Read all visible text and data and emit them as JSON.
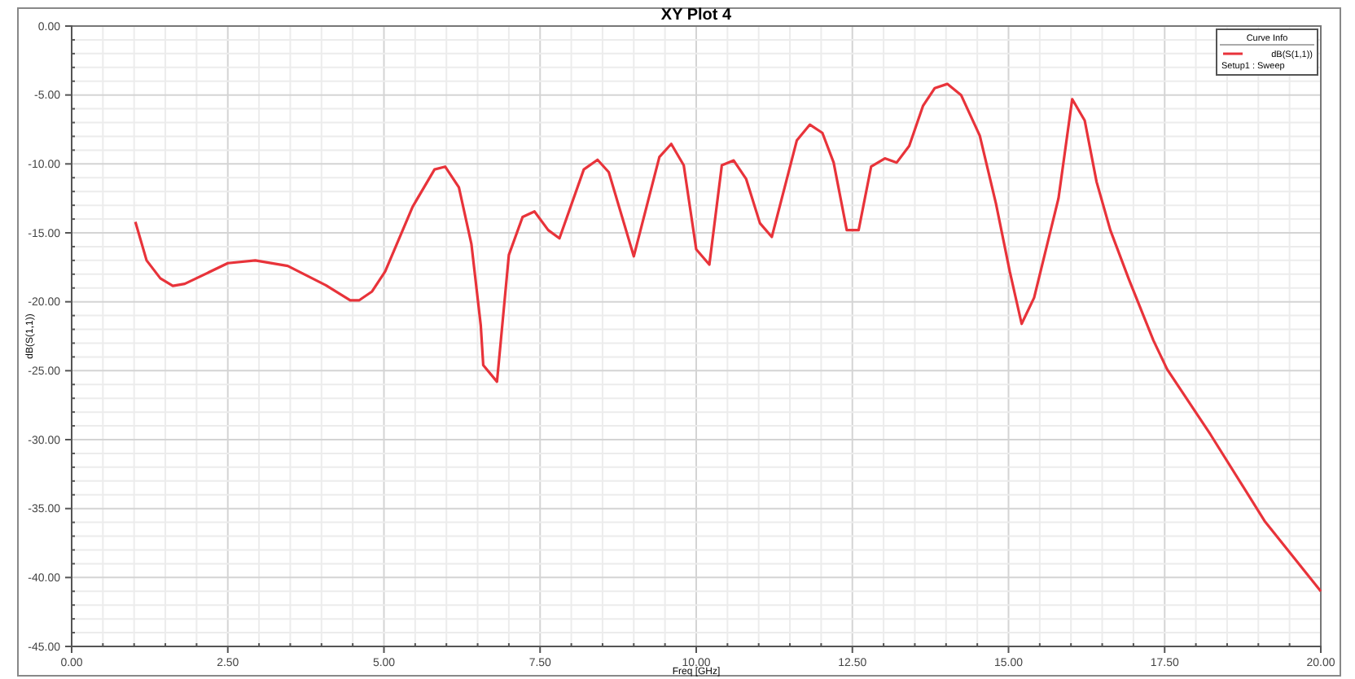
{
  "chart_data": {
    "type": "line",
    "title": "XY Plot 4",
    "xlabel": "Freq [GHz]",
    "ylabel": "dB(S(1,1))",
    "legend_title": "Curve Info",
    "xlim": [
      0,
      20
    ],
    "ylim": [
      -45,
      0
    ],
    "xticks": [
      {
        "value": 0,
        "label": "0.00"
      },
      {
        "value": 2.5,
        "label": "2.50"
      },
      {
        "value": 5,
        "label": "5.00"
      },
      {
        "value": 7.5,
        "label": "7.50"
      },
      {
        "value": 10,
        "label": "10.00"
      },
      {
        "value": 12.5,
        "label": "12.50"
      },
      {
        "value": 15,
        "label": "15.00"
      },
      {
        "value": 17.5,
        "label": "17.50"
      },
      {
        "value": 20,
        "label": "20.00"
      }
    ],
    "yticks": [
      {
        "value": -45,
        "label": "-45.00"
      },
      {
        "value": -40,
        "label": "-40.00"
      },
      {
        "value": -35,
        "label": "-35.00"
      },
      {
        "value": -30,
        "label": "-30.00"
      },
      {
        "value": -25,
        "label": "-25.00"
      },
      {
        "value": -20,
        "label": "-20.00"
      },
      {
        "value": -15,
        "label": "-15.00"
      },
      {
        "value": -10,
        "label": "-10.00"
      },
      {
        "value": -5,
        "label": "-5.00"
      },
      {
        "value": 0,
        "label": "0.00"
      }
    ],
    "grid": true,
    "legend": "top right",
    "marker": "none",
    "line_style": "solid",
    "series": [
      {
        "name": "dB(S(1,1))\nSetup1 : Sweep",
        "color": "#e8333a",
        "x": [
          1.02,
          1.2,
          1.42,
          1.62,
          1.81,
          2.5,
          2.94,
          3.46,
          4.07,
          4.46,
          4.6,
          4.81,
          5.02,
          5.46,
          5.81,
          5.98,
          6.2,
          6.4,
          6.55,
          6.59,
          6.81,
          7.0,
          7.22,
          7.41,
          7.63,
          7.81,
          8.2,
          8.42,
          8.6,
          9.0,
          9.41,
          9.6,
          9.8,
          10.0,
          10.21,
          10.41,
          10.6,
          10.8,
          11.02,
          11.21,
          11.61,
          11.82,
          12.02,
          12.2,
          12.41,
          12.6,
          12.8,
          13.02,
          13.21,
          13.41,
          13.63,
          13.82,
          14.02,
          14.24,
          14.54,
          14.8,
          15.02,
          15.21,
          15.41,
          15.8,
          16.02,
          16.22,
          16.41,
          16.63,
          16.93,
          17.32,
          17.54,
          18.23,
          19.1,
          20.0
        ],
        "values": [
          -14.2,
          -17.0,
          -18.3,
          -18.85,
          -18.7,
          -17.2,
          -17.0,
          -17.4,
          -18.8,
          -19.9,
          -19.9,
          -19.25,
          -17.8,
          -13.1,
          -10.4,
          -10.2,
          -11.7,
          -15.8,
          -21.7,
          -24.6,
          -25.8,
          -16.6,
          -13.85,
          -13.45,
          -14.8,
          -15.4,
          -10.4,
          -9.7,
          -10.6,
          -16.7,
          -9.5,
          -8.55,
          -10.1,
          -16.2,
          -17.3,
          -10.1,
          -9.75,
          -11.1,
          -14.3,
          -15.3,
          -8.3,
          -7.15,
          -7.75,
          -9.9,
          -14.8,
          -14.8,
          -10.2,
          -9.6,
          -9.9,
          -8.7,
          -5.8,
          -4.5,
          -4.2,
          -5.0,
          -7.95,
          -12.9,
          -17.8,
          -21.6,
          -19.7,
          -12.5,
          -5.3,
          -6.85,
          -11.3,
          -14.8,
          -18.4,
          -22.8,
          -24.9,
          -29.6,
          -35.9,
          -41.0
        ]
      }
    ]
  }
}
